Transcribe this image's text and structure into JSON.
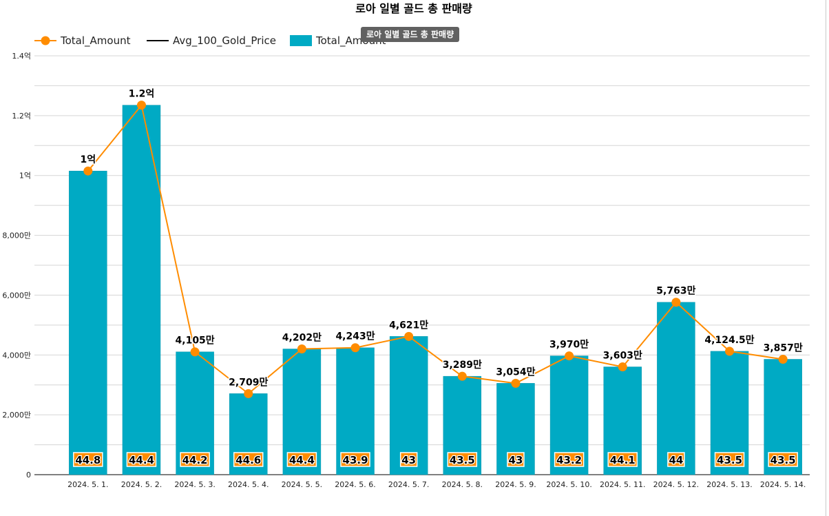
{
  "chart_data": {
    "type": "bar",
    "title": "로아 일별 골드 총 판매량",
    "tooltip": "로아 일별 골드 총 판매량",
    "legend": [
      {
        "name": "Total_Amount",
        "kind": "line-marker",
        "color": "#ff8c00"
      },
      {
        "name": "Avg_100_Gold_Price",
        "kind": "line",
        "color": "#000000"
      },
      {
        "name": "Total_Amount",
        "kind": "bar",
        "color": "#00aac4"
      }
    ],
    "categories": [
      "2024. 5. 1.",
      "2024. 5. 2.",
      "2024. 5. 3.",
      "2024. 5. 4.",
      "2024. 5. 5.",
      "2024. 5. 6.",
      "2024. 5. 7.",
      "2024. 5. 8.",
      "2024. 5. 9.",
      "2024. 5. 10.",
      "2024. 5. 11.",
      "2024. 5. 12.",
      "2024. 5. 13.",
      "2024. 5. 14."
    ],
    "series": [
      {
        "name": "Total_Amount",
        "type": "bar",
        "color": "#00aac4",
        "values": [
          101500000,
          123500000,
          41050000,
          27090000,
          42020000,
          42430000,
          46210000,
          32890000,
          30540000,
          39700000,
          36030000,
          57630000,
          41245000,
          38570000
        ]
      },
      {
        "name": "Total_Amount",
        "type": "line",
        "color": "#ff8c00",
        "values": [
          101500000,
          123500000,
          41050000,
          27090000,
          42020000,
          42430000,
          46210000,
          32890000,
          30540000,
          39700000,
          36030000,
          57630000,
          41245000,
          38570000
        ],
        "labels": [
          "1억",
          "1.2억",
          "4,105만",
          "2,709만",
          "4,202만",
          "4,243만",
          "4,621만",
          "3,289만",
          "3,054만",
          "3,970만",
          "3,603만",
          "5,763만",
          "4,124.5만",
          "3,857만"
        ]
      },
      {
        "name": "Avg_100_Gold_Price",
        "type": "label",
        "color": "#000000",
        "values": [
          44.8,
          44.4,
          44.2,
          44.6,
          44.4,
          43.9,
          43,
          43.5,
          43,
          43.2,
          44.1,
          44,
          43.5,
          43.5
        ],
        "labels": [
          "44.8",
          "44.4",
          "44.2",
          "44.6",
          "44.4",
          "43.9",
          "43",
          "43.5",
          "43",
          "43.2",
          "44.1",
          "44",
          "43.5",
          "43.5"
        ]
      }
    ],
    "ylim": [
      0,
      140000000
    ],
    "yticks": [
      {
        "value": 0,
        "label": "0"
      },
      {
        "value": 20000000,
        "label": "2,000만"
      },
      {
        "value": 40000000,
        "label": "4,000만"
      },
      {
        "value": 60000000,
        "label": "6,000만"
      },
      {
        "value": 80000000,
        "label": "8,000만"
      },
      {
        "value": 100000000,
        "label": "1억"
      },
      {
        "value": 120000000,
        "label": "1.2억"
      },
      {
        "value": 140000000,
        "label": "1.4억"
      }
    ],
    "minor_grid_step": 10000000,
    "grid": true,
    "legend_position": "top-left",
    "xlabel": "",
    "ylabel": ""
  }
}
